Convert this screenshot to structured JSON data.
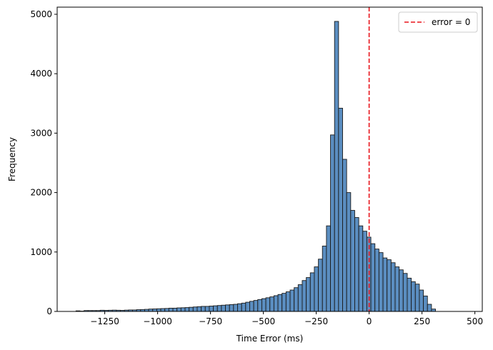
{
  "chart_data": {
    "type": "bar",
    "subtype": "histogram",
    "xlabel": "Time Error (ms)",
    "ylabel": "Frequency",
    "xlim": [
      -1475,
      535
    ],
    "ylim": [
      0,
      5120
    ],
    "x_ticks": [
      -1250,
      -1000,
      -750,
      -500,
      -250,
      0,
      250,
      500
    ],
    "x_tick_labels": [
      "−1250",
      "−1000",
      "−750",
      "−500",
      "−250",
      "0",
      "250",
      "500"
    ],
    "y_ticks": [
      0,
      1000,
      2000,
      3000,
      4000,
      5000
    ],
    "y_tick_labels": [
      "0",
      "1000",
      "2000",
      "3000",
      "4000",
      "5000"
    ],
    "grid": false,
    "bar_color": "#5b8ec1",
    "bar_edge_color": "#1a1a1a",
    "bin_start": -1386,
    "bin_width": 19.1,
    "counts": [
      10,
      5,
      15,
      15,
      15,
      15,
      20,
      18,
      20,
      22,
      20,
      18,
      22,
      25,
      25,
      30,
      32,
      35,
      40,
      42,
      45,
      48,
      50,
      55,
      55,
      60,
      62,
      65,
      70,
      75,
      80,
      85,
      85,
      90,
      95,
      100,
      105,
      110,
      115,
      120,
      130,
      140,
      155,
      170,
      185,
      200,
      215,
      230,
      245,
      265,
      285,
      305,
      330,
      360,
      400,
      450,
      520,
      570,
      650,
      750,
      880,
      1100,
      1440,
      2970,
      4880,
      3420,
      2560,
      2000,
      1700,
      1580,
      1440,
      1350,
      1250,
      1140,
      1050,
      990,
      900,
      870,
      820,
      750,
      700,
      640,
      560,
      500,
      460,
      360,
      260,
      120,
      40
    ],
    "reference_line": {
      "x": 0,
      "color": "#e8141b",
      "label": "error = 0"
    },
    "legend": {
      "position": "top-right",
      "entries": [
        "error = 0"
      ]
    }
  }
}
